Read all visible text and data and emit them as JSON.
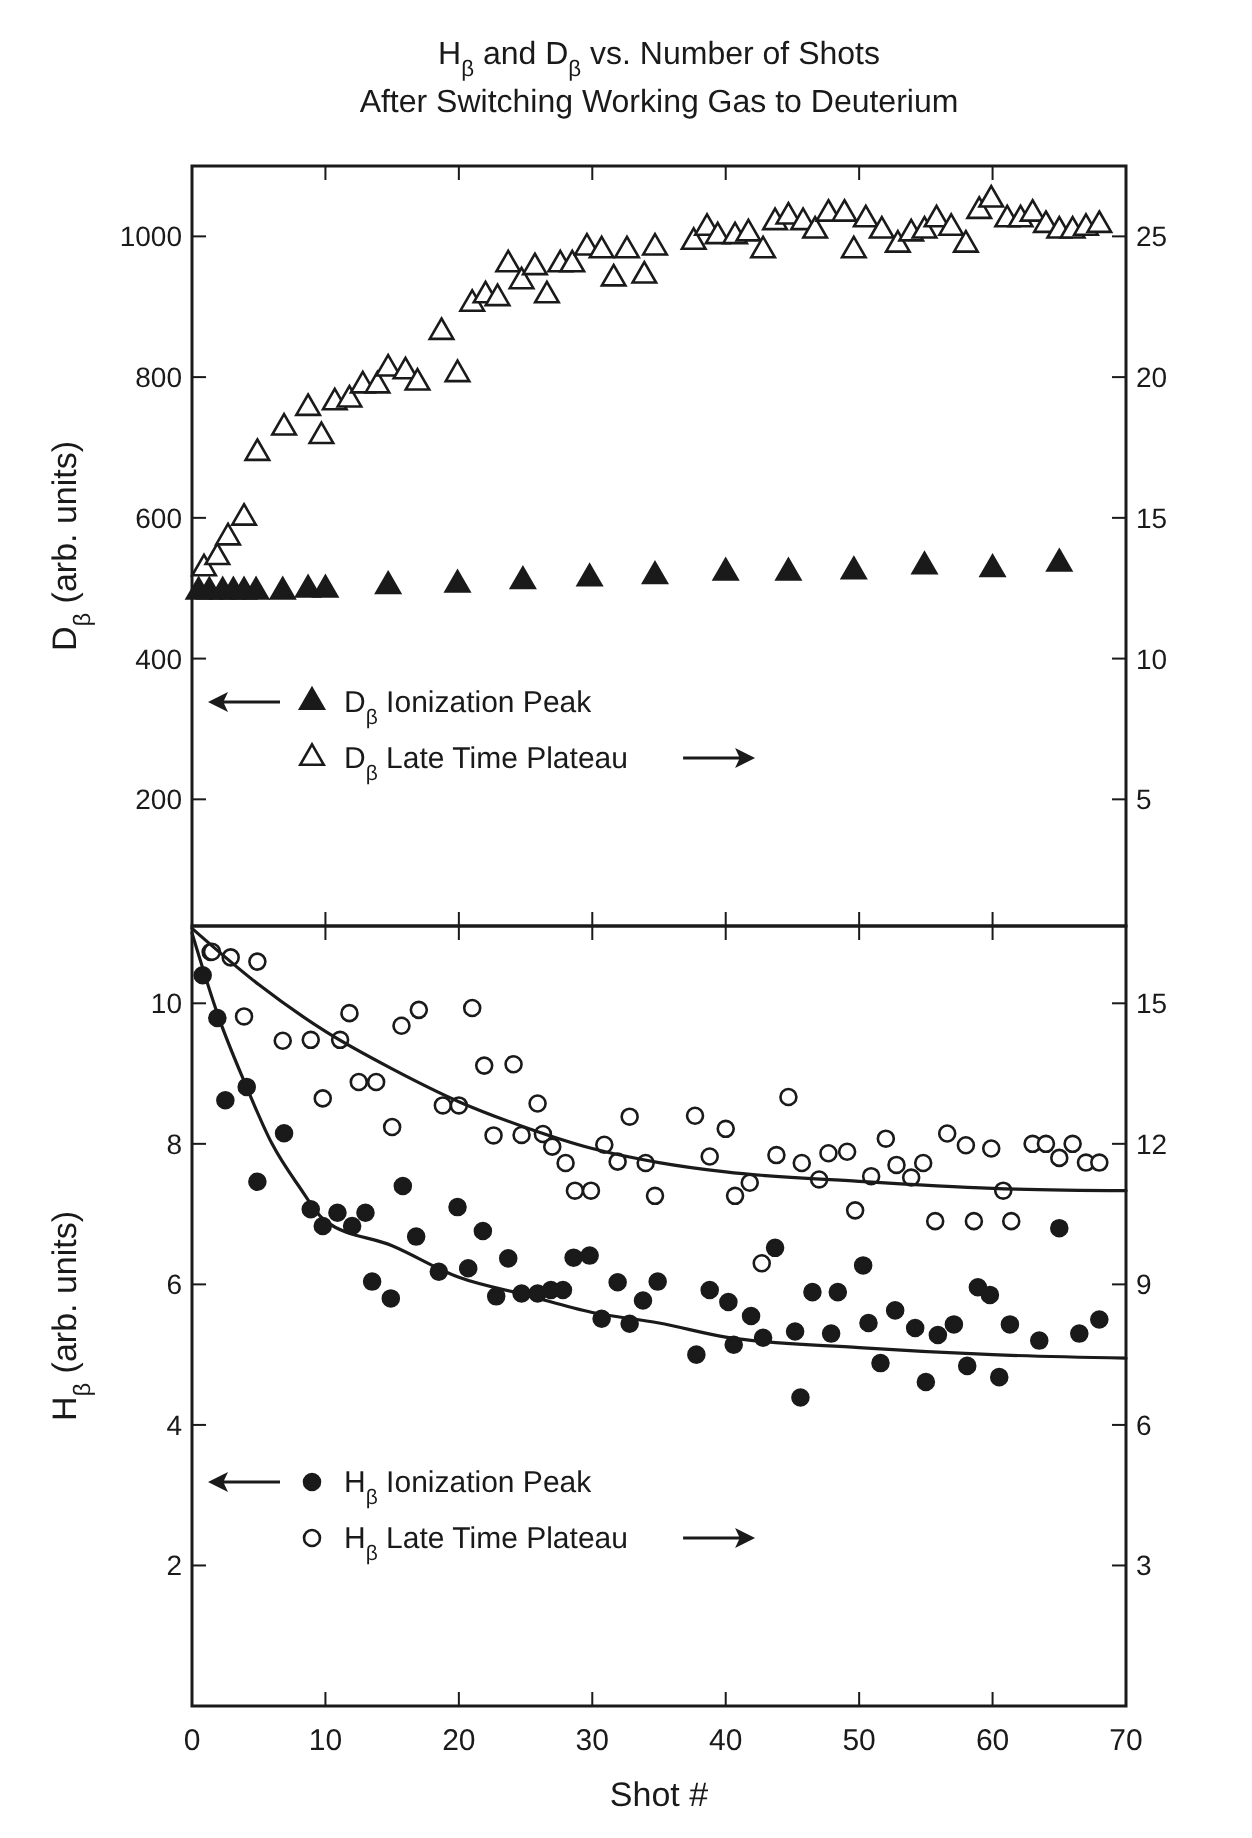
{
  "chart_data": [
    {
      "type": "scatter",
      "title": "H$_{β}$ and D$_{β}$ vs. Number of Shots",
      "subtitle": "After Switching Working Gas to Deuterium",
      "ylabel": "D$_{β}$ (arb. units)",
      "xlim": [
        0,
        70
      ],
      "xticks": [
        0,
        10,
        20,
        30,
        40,
        50,
        60,
        70
      ],
      "ylim": [
        20,
        1100
      ],
      "yticks": [
        200,
        400,
        600,
        800,
        1000
      ],
      "y2lim": [
        0.5,
        27.5
      ],
      "y2ticks": [
        5,
        10,
        15,
        20,
        25
      ],
      "tick_labels": "y",
      "marker": "triangle",
      "legend": "bottom left",
      "series": [
        {
          "name": "D$_{β}$ Ionization Peak",
          "color": "#1a1a1a",
          "x": [
            0.5,
            1.3,
            2.3,
            3.1,
            3.9,
            4.8,
            6.8,
            8.7,
            10.0,
            14.7,
            19.9,
            24.8,
            29.8,
            34.7,
            40.0,
            44.7,
            49.6,
            54.9,
            60.0,
            65.0
          ],
          "values": [
            495,
            495,
            495,
            495,
            495,
            495,
            495,
            498,
            498,
            503,
            505,
            510,
            514,
            517,
            522,
            522,
            524,
            531,
            527,
            535
          ]
        },
        {
          "name": "D$_{β}$ Late Time Plateau",
          "color": "#ffffff",
          "axis": "y2",
          "x": [
            0.9,
            1.9,
            2.7,
            3.9,
            4.9,
            6.9,
            8.7,
            9.7,
            10.7,
            11.8,
            12.8,
            13.9,
            14.7,
            16.0,
            16.9,
            18.7,
            19.9,
            21.0,
            22.0,
            22.9,
            23.7,
            24.7,
            25.7,
            26.6,
            27.6,
            28.5,
            29.6,
            30.7,
            31.6,
            32.6,
            33.9,
            34.7,
            37.6,
            38.6,
            39.4,
            40.7,
            41.7,
            42.8,
            43.7,
            44.7,
            45.8,
            46.7,
            47.7,
            48.9,
            49.6,
            50.5,
            51.7,
            52.9,
            53.9,
            54.9,
            55.8,
            56.9,
            58.0,
            59.0,
            59.9,
            61.1,
            62.1,
            63.0,
            64.0,
            65.0,
            66.0,
            67.0,
            68.0
          ],
          "values": [
            13.2,
            13.6,
            14.3,
            15.0,
            17.3,
            18.2,
            18.9,
            17.9,
            19.1,
            19.2,
            19.7,
            19.7,
            20.3,
            20.2,
            19.8,
            21.6,
            20.1,
            22.6,
            22.9,
            22.8,
            24.0,
            23.4,
            23.9,
            22.9,
            24.0,
            24.0,
            24.6,
            24.5,
            23.5,
            24.5,
            23.6,
            24.6,
            24.8,
            25.3,
            25.0,
            25.0,
            25.1,
            24.5,
            25.5,
            25.7,
            25.5,
            25.2,
            25.8,
            25.8,
            24.5,
            25.6,
            25.2,
            24.7,
            25.1,
            25.2,
            25.6,
            25.3,
            24.7,
            25.9,
            26.3,
            25.6,
            25.6,
            25.8,
            25.4,
            25.2,
            25.2,
            25.3,
            25.4
          ]
        }
      ]
    },
    {
      "type": "scatter",
      "xlabel": "Shot #",
      "ylabel": "H$_{β}$ (arb. units)",
      "xlim": [
        0,
        70
      ],
      "xticks": [
        0,
        10,
        20,
        30,
        40,
        50,
        60,
        70
      ],
      "ylim": [
        0,
        11.1
      ],
      "yticks": [
        2,
        4,
        6,
        8,
        10
      ],
      "y2lim": [
        0,
        16.65
      ],
      "y2ticks": [
        3,
        6,
        9,
        12,
        15
      ],
      "marker": "circle",
      "legend": "bottom left",
      "series": [
        {
          "name": "H$_{β}$ Ionization Peak",
          "color": "#1a1a1a",
          "x": [
            0.8,
            1.4,
            1.9,
            2.5,
            4.1,
            4.9,
            6.9,
            8.9,
            9.8,
            10.9,
            12.0,
            13.0,
            13.5,
            14.9,
            15.8,
            16.8,
            18.5,
            19.9,
            20.7,
            21.8,
            22.8,
            23.7,
            24.7,
            25.9,
            26.9,
            27.8,
            28.6,
            29.8,
            30.7,
            31.9,
            32.8,
            33.8,
            34.9,
            37.8,
            38.8,
            40.2,
            40.6,
            41.9,
            42.8,
            43.7,
            45.2,
            45.6,
            46.5,
            47.9,
            48.4,
            50.3,
            50.7,
            51.6,
            52.7,
            54.2,
            55.0,
            55.9,
            57.1,
            58.1,
            58.9,
            59.8,
            60.5,
            61.3,
            63.5,
            65.0,
            66.5,
            68.0
          ],
          "values": [
            10.4,
            10.73,
            9.79,
            8.62,
            8.81,
            7.46,
            8.15,
            7.07,
            6.83,
            7.02,
            6.83,
            7.02,
            6.04,
            5.8,
            7.4,
            6.68,
            6.18,
            7.1,
            6.23,
            6.76,
            5.83,
            6.37,
            5.87,
            5.87,
            5.92,
            5.92,
            6.38,
            6.41,
            5.51,
            6.03,
            5.44,
            5.77,
            6.04,
            5.0,
            5.92,
            5.75,
            5.14,
            5.55,
            5.24,
            6.52,
            5.33,
            4.39,
            5.89,
            5.3,
            5.89,
            6.27,
            5.45,
            4.88,
            5.63,
            5.38,
            4.61,
            5.28,
            5.43,
            4.84,
            5.96,
            5.85,
            4.68,
            5.43,
            5.2,
            6.8,
            5.3,
            5.5
          ]
        },
        {
          "name": "H$_{β}$ Late Time Plateau",
          "color": "#ffffff",
          "axis": "y2",
          "x": [
            1.5,
            2.9,
            3.9,
            4.9,
            6.8,
            8.9,
            9.8,
            11.1,
            11.8,
            12.5,
            13.8,
            15.0,
            15.7,
            17.0,
            18.8,
            20.0,
            21.0,
            21.9,
            22.6,
            24.1,
            24.7,
            25.9,
            26.3,
            27.0,
            28.0,
            28.7,
            29.9,
            30.9,
            31.9,
            32.8,
            34.0,
            34.7,
            37.7,
            38.8,
            40.0,
            40.7,
            41.8,
            42.7,
            43.8,
            44.7,
            45.7,
            47.0,
            47.7,
            49.1,
            49.7,
            50.9,
            52.0,
            52.8,
            53.9,
            54.8,
            55.7,
            56.6,
            58.0,
            58.6,
            59.9,
            60.8,
            61.4,
            63.0,
            64.0,
            65.0,
            66.0,
            67.0,
            68.0
          ],
          "values": [
            16.1,
            15.98,
            14.72,
            15.89,
            14.2,
            14.22,
            12.97,
            14.22,
            14.79,
            13.32,
            13.32,
            12.36,
            14.52,
            14.86,
            12.82,
            12.82,
            14.9,
            13.67,
            12.18,
            13.7,
            12.19,
            12.86,
            12.21,
            11.94,
            11.59,
            11.0,
            11.0,
            11.98,
            11.62,
            12.58,
            11.59,
            10.89,
            12.6,
            11.73,
            12.32,
            10.89,
            11.17,
            9.45,
            11.76,
            13.0,
            11.59,
            11.24,
            11.8,
            11.83,
            10.58,
            11.31,
            12.11,
            11.55,
            11.28,
            11.59,
            10.35,
            12.22,
            11.97,
            10.35,
            11.9,
            11.0,
            10.35,
            12.0,
            12.0,
            11.7,
            12.0,
            11.6,
            11.6
          ]
        },
        {
          "type": "line",
          "marker": "none",
          "color": "#1a1a1a",
          "x": [
            0,
            2,
            4,
            6,
            8,
            10,
            15,
            20,
            25,
            30,
            35,
            40,
            50,
            60,
            70
          ],
          "values": [
            11.0,
            9.8,
            8.85,
            8.0,
            7.4,
            6.9,
            6.55,
            6.1,
            5.85,
            5.6,
            5.45,
            5.25,
            5.1,
            5.0,
            4.95
          ]
        },
        {
          "type": "line",
          "marker": "none",
          "color": "#1a1a1a",
          "axis": "y2",
          "x": [
            0,
            5,
            10,
            15,
            20,
            25,
            30,
            35,
            40,
            50,
            60,
            70
          ],
          "values": [
            16.6,
            15.4,
            14.4,
            13.6,
            12.9,
            12.35,
            11.9,
            11.6,
            11.4,
            11.2,
            11.05,
            11.0
          ]
        }
      ]
    }
  ]
}
